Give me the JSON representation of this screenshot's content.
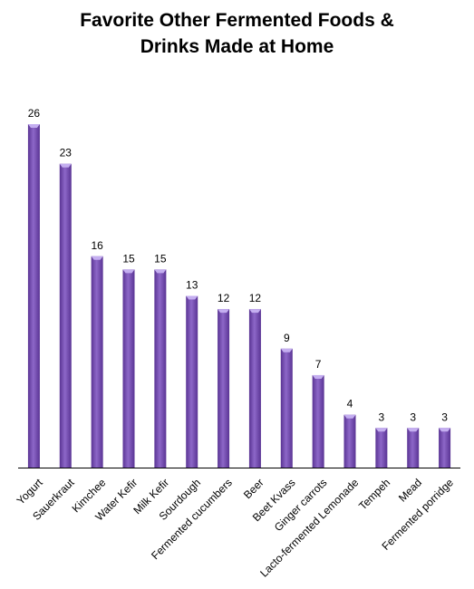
{
  "chart_data": {
    "type": "bar",
    "title_lines": [
      "Favorite Other Fermented Foods &",
      "Drinks Made at Home"
    ],
    "categories": [
      "Yogurt",
      "Sauerkraut",
      "Kimchee",
      "Water Kefir",
      "Milk Kefir",
      "Sourdough",
      "Fermented cucumbers",
      "Beer",
      "Beet Kvass",
      "Ginger carrots",
      "Lacto-fermented Lemonade",
      "Tempeh",
      "Mead",
      "Fermented porridge"
    ],
    "values": [
      26,
      23,
      16,
      15,
      15,
      13,
      12,
      12,
      9,
      7,
      4,
      3,
      3,
      3
    ],
    "xlabel": "",
    "ylabel": "",
    "ylim": [
      0,
      26
    ],
    "grid": false,
    "legend": "none",
    "colors": {
      "bar_light": "#9b7bd0",
      "bar_main": "#6e46a8",
      "bar_dark": "#4b2a80",
      "axis": "#000000"
    }
  }
}
